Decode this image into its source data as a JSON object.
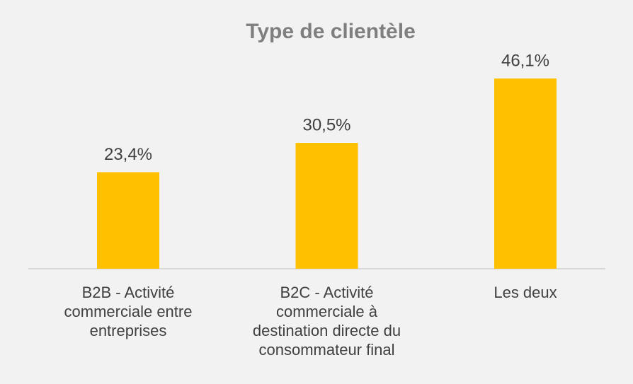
{
  "chart_data": {
    "type": "bar",
    "title": "Type de clientèle",
    "categories": [
      "B2B - Activité commerciale entre entreprises",
      "B2C - Activité commerciale à destination directe du consommateur final",
      "Les deux"
    ],
    "values": [
      23.4,
      30.5,
      46.1
    ],
    "value_labels": [
      "23,4%",
      "30,5%",
      "46,1%"
    ],
    "color": "#ffc000"
  }
}
